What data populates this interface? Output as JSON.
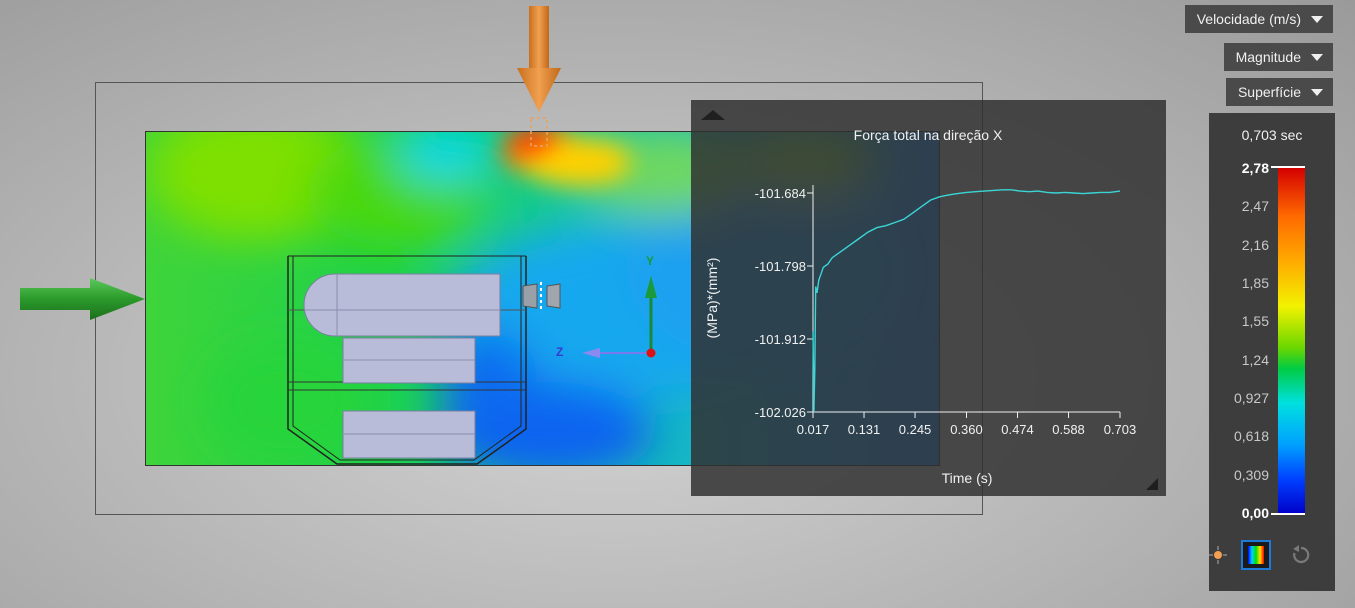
{
  "viewport": {
    "axis_labels": {
      "y": "Y",
      "z": "Z"
    },
    "icons": [
      "inlet-arrow-icon",
      "gravity-arrow-icon",
      "axis-triad-icon"
    ]
  },
  "dropdowns": {
    "quantity": "Velocidade (m/s)",
    "component": "Magnitude",
    "display": "Superfície"
  },
  "legend": {
    "time": "0,703 sec",
    "ticks": [
      "2,78",
      "2,47",
      "2,16",
      "1,85",
      "1,55",
      "1,24",
      "0,927",
      "0,618",
      "0,309",
      "0,00"
    ],
    "buttons": [
      "probe-icon",
      "color-bar-icon",
      "reset-icon"
    ]
  },
  "chart_data": {
    "type": "line",
    "title": "Força total na direção X",
    "xlabel": "Time (s)",
    "ylabel": "(MPa)*(mm²)",
    "xticks": [
      "0.017",
      "0.131",
      "0.245",
      "0.360",
      "0.474",
      "0.588",
      "0.703"
    ],
    "yticks": [
      "-101.684",
      "-101.798",
      "-101.912",
      "-102.026"
    ],
    "xlim": [
      0.017,
      0.703
    ],
    "ylim": [
      -102.026,
      -101.684
    ],
    "series": [
      {
        "color": "#3ad6d6",
        "x": [
          0.017,
          0.019,
          0.021,
          0.023,
          0.026,
          0.03,
          0.035,
          0.04,
          0.05,
          0.06,
          0.08,
          0.1,
          0.12,
          0.14,
          0.16,
          0.18,
          0.2,
          0.22,
          0.24,
          0.26,
          0.28,
          0.3,
          0.32,
          0.34,
          0.36,
          0.38,
          0.4,
          0.42,
          0.44,
          0.46,
          0.48,
          0.5,
          0.52,
          0.54,
          0.56,
          0.58,
          0.6,
          0.62,
          0.64,
          0.66,
          0.68,
          0.703
        ],
        "y": [
          -101.9,
          -102.026,
          -101.96,
          -101.83,
          -101.84,
          -101.82,
          -101.81,
          -101.8,
          -101.795,
          -101.785,
          -101.775,
          -101.765,
          -101.755,
          -101.745,
          -101.738,
          -101.735,
          -101.73,
          -101.725,
          -101.715,
          -101.705,
          -101.695,
          -101.69,
          -101.687,
          -101.685,
          -101.683,
          -101.682,
          -101.681,
          -101.68,
          -101.679,
          -101.679,
          -101.681,
          -101.682,
          -101.681,
          -101.683,
          -101.684,
          -101.683,
          -101.684,
          -101.685,
          -101.684,
          -101.683,
          -101.683,
          -101.681
        ]
      }
    ]
  }
}
